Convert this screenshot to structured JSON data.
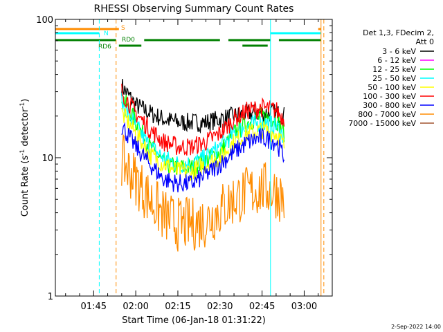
{
  "chart_data": {
    "type": "line",
    "title": "RHESSI Observing Summary Count Rates",
    "xlabel": "Start Time (06-Jan-18 01:31:22)",
    "ylabel_prefix": "Count Rate (s",
    "ylabel_exp": "-1",
    "ylabel_mid": " detector",
    "ylabel_suffix": ")",
    "y_scale": "log",
    "ylim": [
      1,
      100
    ],
    "xlim": [
      "01:31:22",
      "03:10:00"
    ],
    "x_ticks": [
      "01:45",
      "02:00",
      "02:15",
      "02:30",
      "02:45",
      "03:00"
    ],
    "y_ticks": [
      "1",
      "10",
      "100"
    ],
    "legend_header": [
      "Det 1,3, FDecim 2,",
      "Att 0"
    ],
    "legend_position": "right",
    "series": [
      {
        "name": "3 - 6 keV",
        "color": "#000000",
        "x": [
          "01:55",
          "02:00",
          "02:05",
          "02:10",
          "02:15",
          "02:20",
          "02:25",
          "02:30",
          "02:35",
          "02:40",
          "02:45",
          "02:50",
          "02:53"
        ],
        "y": [
          33,
          24,
          21,
          19,
          18,
          18,
          18,
          19,
          20,
          21,
          21,
          21,
          20
        ]
      },
      {
        "name": "6 - 12 keV",
        "color": "#ff00ff",
        "x": [],
        "y": []
      },
      {
        "name": "12 - 25 keV",
        "color": "#00ff00",
        "x": [
          "01:55",
          "02:00",
          "02:05",
          "02:10",
          "02:15",
          "02:20",
          "02:25",
          "02:30",
          "02:35",
          "02:40",
          "02:45",
          "02:50",
          "02:53"
        ],
        "y": [
          28,
          18,
          12,
          9,
          8.5,
          8.5,
          9.5,
          11,
          15,
          18,
          20,
          19,
          15
        ]
      },
      {
        "name": "25 - 50 keV",
        "color": "#00ffff",
        "x": [
          "01:55",
          "02:00",
          "02:05",
          "02:10",
          "02:15",
          "02:20",
          "02:25",
          "02:30",
          "02:35",
          "02:40",
          "02:45",
          "02:50",
          "02:53"
        ],
        "y": [
          25,
          17,
          12,
          10,
          9,
          9,
          10,
          12,
          15,
          17,
          18,
          17,
          14
        ]
      },
      {
        "name": "50 - 100 keV",
        "color": "#ffff00",
        "x": [
          "01:55",
          "02:00",
          "02:05",
          "02:10",
          "02:15",
          "02:20",
          "02:25",
          "02:30",
          "02:35",
          "02:40",
          "02:45",
          "02:50",
          "02:53"
        ],
        "y": [
          21,
          15,
          10.5,
          9,
          8,
          8,
          9,
          10,
          13,
          15,
          16,
          15,
          12
        ]
      },
      {
        "name": "100 - 300 keV",
        "color": "#ff0000",
        "x": [
          "01:55",
          "02:00",
          "02:05",
          "02:10",
          "02:15",
          "02:20",
          "02:25",
          "02:30",
          "02:35",
          "02:40",
          "02:45",
          "02:50",
          "02:53"
        ],
        "y": [
          30,
          21,
          16,
          13,
          12,
          12,
          13,
          15,
          19,
          22,
          23,
          22,
          19
        ]
      },
      {
        "name": "300 - 800 keV",
        "color": "#0000ff",
        "x": [
          "01:55",
          "02:00",
          "02:05",
          "02:10",
          "02:15",
          "02:20",
          "02:25",
          "02:30",
          "02:35",
          "02:40",
          "02:45",
          "02:50",
          "02:53"
        ],
        "y": [
          17,
          12,
          9,
          7,
          6.5,
          6.5,
          7.5,
          9,
          11,
          13,
          14,
          13,
          10
        ]
      },
      {
        "name": "800 - 7000 keV",
        "color": "#ff8c00",
        "x": [
          "01:55",
          "02:00",
          "02:05",
          "02:10",
          "02:15",
          "02:20",
          "02:25",
          "02:30",
          "02:35",
          "02:40",
          "02:45",
          "02:50",
          "02:53"
        ],
        "y": [
          9.5,
          7,
          5,
          3.8,
          3.3,
          3.3,
          3.5,
          4.2,
          5,
          5.6,
          6,
          5.7,
          5
        ]
      },
      {
        "name": "7000 - 15000 keV",
        "color": "#a0522d",
        "x": [],
        "y": []
      }
    ],
    "state_bars": [
      {
        "label": "S",
        "color": "#ff8c00",
        "segments": [
          [
            "01:31:22",
            "01:54"
          ],
          [
            "03:05",
            "03:06"
          ]
        ]
      },
      {
        "label": "N",
        "color": "#00ffff",
        "segments": [
          [
            "01:31:22",
            "01:47"
          ],
          [
            "02:48",
            "03:06"
          ]
        ]
      },
      {
        "label": "RD0",
        "color": "#008000",
        "segments": [
          [
            "01:31:22",
            "01:53"
          ],
          [
            "02:03",
            "02:30"
          ],
          [
            "02:33",
            "02:48"
          ],
          [
            "02:51",
            "03:06"
          ]
        ]
      },
      {
        "label": "RD6",
        "color": "#008000",
        "segments": [
          [
            "01:54",
            "02:02"
          ],
          [
            "02:38",
            "02:47"
          ]
        ]
      }
    ],
    "vlines": [
      {
        "time": "01:47",
        "color": "#00ffff",
        "dash": true
      },
      {
        "time": "01:53",
        "color": "#ff8c00",
        "dash": true
      },
      {
        "time": "02:48",
        "color": "#00ffff",
        "dash": false
      },
      {
        "time": "03:06",
        "color": "#ff8c00",
        "dash": false
      },
      {
        "time": "03:07",
        "color": "#ff8c00",
        "dash": true
      }
    ]
  },
  "footer_date": "2-Sep-2022 14:00",
  "colors": {
    "axis": "#000000",
    "background": "#ffffff"
  }
}
